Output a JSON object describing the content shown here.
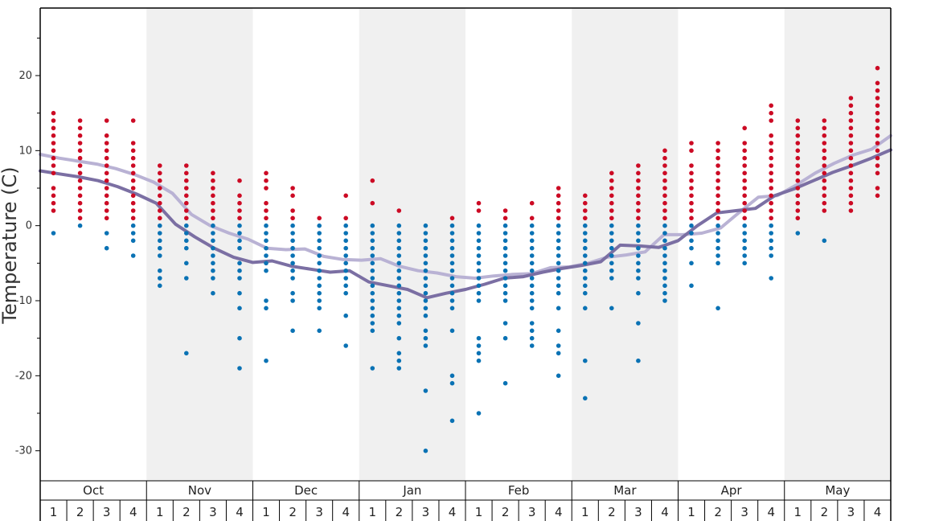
{
  "chart_data": {
    "type": "scatter",
    "title": "",
    "xlabel": "",
    "ylabel": "Temperature (C)",
    "ylim": [
      -34,
      29
    ],
    "yticks": [
      -30,
      -20,
      -10,
      0,
      10,
      20
    ],
    "grid": false,
    "months": [
      "Oct",
      "Nov",
      "Dec",
      "Jan",
      "Feb",
      "Mar",
      "Apr",
      "May"
    ],
    "weeks": [
      "1",
      "2",
      "3",
      "4"
    ],
    "shaded_months": [
      "Nov",
      "Jan",
      "Mar",
      "May"
    ],
    "colors": {
      "above_zero": "#cc0a24",
      "below_zero": "#0a72b4",
      "upper_line": "#b9b2d4",
      "lower_line": "#7b6fa3",
      "shade": "#f0f0f0"
    },
    "series": [
      {
        "values": [
          9.5,
          9.0,
          8.6,
          8.2,
          7.6,
          6.8,
          5.8,
          4.3,
          1.5,
          0.0,
          -1.0,
          -1.8,
          -3.0,
          -3.2,
          -3.1,
          -4.1,
          -4.5,
          -4.6,
          -4.4,
          -5.4,
          -6.0,
          -6.3,
          -6.8,
          -7.0,
          -6.7,
          -6.5,
          -6.4,
          -5.6,
          -5.5,
          -5.0,
          -4.2,
          -3.9,
          -3.5,
          -1.2,
          -1.2,
          -1.0,
          -0.3,
          1.8,
          3.8,
          4.0,
          5.4,
          7.0,
          8.3,
          9.4,
          10.2,
          12.0
        ]
      },
      {
        "values": [
          7.3,
          6.9,
          6.5,
          6.0,
          5.2,
          4.2,
          3.0,
          0.2,
          -1.5,
          -3.0,
          -4.2,
          -4.9,
          -4.7,
          -5.4,
          -5.8,
          -6.2,
          -6.0,
          -7.5,
          -8.0,
          -8.5,
          -9.6,
          -9.0,
          -8.5,
          -7.8,
          -7.0,
          -6.8,
          -6.2,
          -5.7,
          -5.3,
          -4.8,
          -2.6,
          -2.7,
          -2.9,
          -2.0,
          0.0,
          1.7,
          2.0,
          2.3,
          4.0,
          4.9,
          6.0,
          7.1,
          8.0,
          9.0,
          10.1
        ]
      }
    ],
    "scatter": [
      [
        15,
        14,
        13,
        12,
        11,
        10,
        9,
        8,
        7,
        5,
        4,
        3,
        2,
        -1
      ],
      [
        14,
        13,
        12,
        11,
        10,
        9,
        8,
        7,
        6,
        5,
        4,
        3,
        2,
        1,
        0
      ],
      [
        14,
        12,
        11,
        10,
        9,
        8,
        7,
        6,
        5,
        4,
        3,
        2,
        1,
        -1,
        -3
      ],
      [
        14,
        11,
        10,
        9,
        8,
        7,
        6,
        5,
        4,
        3,
        2,
        1,
        0,
        -1,
        -2,
        -4
      ],
      [
        8,
        7,
        6,
        5,
        4,
        3,
        2,
        1,
        0,
        -1,
        -2,
        -3,
        -4,
        -6,
        -7,
        -8
      ],
      [
        8,
        7,
        6,
        5,
        4,
        3,
        2,
        1,
        0,
        -1,
        -2,
        -3,
        -5,
        -7,
        -17
      ],
      [
        7,
        6,
        5,
        4,
        3,
        2,
        1,
        0,
        -1,
        -2,
        -3,
        -4,
        -5,
        -6,
        -7,
        -9
      ],
      [
        6,
        4,
        3,
        2,
        1,
        0,
        -1,
        -2,
        -3,
        -5,
        -6,
        -7,
        -9,
        -11,
        -15,
        -19
      ],
      [
        7,
        6,
        5,
        3,
        2,
        1,
        0,
        -1,
        -2,
        -3,
        -4,
        -5,
        -6,
        -10,
        -11,
        -18
      ],
      [
        5,
        4,
        2,
        1,
        0,
        -1,
        -2,
        -3,
        -4,
        -5,
        -6,
        -7,
        -9,
        -10,
        -14
      ],
      [
        1,
        0,
        -1,
        -2,
        -3,
        -4,
        -5,
        -6,
        -7,
        -8,
        -9,
        -10,
        -11,
        -14
      ],
      [
        4,
        1,
        0,
        -1,
        -2,
        -3,
        -4,
        -5,
        -6,
        -7,
        -8,
        -9,
        -12,
        -16
      ],
      [
        6,
        3,
        0,
        -1,
        -2,
        -3,
        -4,
        -5,
        -6,
        -7,
        -8,
        -9,
        -10,
        -11,
        -12,
        -13,
        -14,
        -19
      ],
      [
        2,
        0,
        -1,
        -2,
        -3,
        -4,
        -5,
        -6,
        -7,
        -8,
        -9,
        -10,
        -11,
        -12,
        -13,
        -15,
        -17,
        -18,
        -19
      ],
      [
        0,
        -1,
        -2,
        -3,
        -4,
        -5,
        -6,
        -7,
        -8,
        -9,
        -10,
        -11,
        -12,
        -14,
        -15,
        -16,
        -22,
        -30
      ],
      [
        1,
        0,
        -1,
        -2,
        -3,
        -4,
        -5,
        -6,
        -7,
        -8,
        -9,
        -10,
        -11,
        -14,
        -20,
        -21,
        -26
      ],
      [
        3,
        2,
        0,
        -1,
        -2,
        -3,
        -4,
        -5,
        -6,
        -7,
        -8,
        -9,
        -10,
        -15,
        -16,
        -17,
        -18,
        -25
      ],
      [
        2,
        1,
        0,
        -1,
        -2,
        -3,
        -4,
        -5,
        -6,
        -7,
        -8,
        -9,
        -10,
        -13,
        -15,
        -21
      ],
      [
        3,
        1,
        0,
        -1,
        -2,
        -3,
        -4,
        -5,
        -6,
        -7,
        -8,
        -9,
        -10,
        -11,
        -13,
        -14,
        -15,
        -16
      ],
      [
        5,
        4,
        3,
        2,
        1,
        0,
        -1,
        -2,
        -3,
        -4,
        -5,
        -6,
        -7,
        -8,
        -9,
        -11,
        -14,
        -16,
        -17,
        -20
      ],
      [
        4,
        3,
        2,
        1,
        0,
        -1,
        -2,
        -3,
        -4,
        -5,
        -6,
        -7,
        -8,
        -9,
        -11,
        -18,
        -23
      ],
      [
        7,
        6,
        5,
        4,
        3,
        2,
        1,
        0,
        -1,
        -2,
        -3,
        -4,
        -5,
        -6,
        -7,
        -11
      ],
      [
        8,
        7,
        6,
        5,
        4,
        3,
        2,
        1,
        0,
        -1,
        -2,
        -3,
        -4,
        -5,
        -6,
        -7,
        -9,
        -13,
        -18
      ],
      [
        10,
        9,
        8,
        7,
        6,
        5,
        4,
        3,
        2,
        1,
        0,
        -1,
        -2,
        -3,
        -4,
        -5,
        -6,
        -7,
        -8,
        -9,
        -10
      ],
      [
        11,
        10,
        8,
        7,
        6,
        5,
        4,
        3,
        2,
        1,
        0,
        -1,
        -2,
        -3,
        -5,
        -8
      ],
      [
        11,
        10,
        9,
        8,
        7,
        6,
        5,
        4,
        3,
        2,
        1,
        0,
        -1,
        -2,
        -3,
        -4,
        -5,
        -11
      ],
      [
        13,
        11,
        10,
        9,
        8,
        7,
        6,
        5,
        4,
        3,
        2,
        1,
        0,
        -1,
        -2,
        -3,
        -4,
        -5
      ],
      [
        16,
        15,
        14,
        12,
        11,
        10,
        9,
        8,
        7,
        6,
        5,
        4,
        3,
        2,
        1,
        0,
        -1,
        -2,
        -3,
        -4,
        -7
      ],
      [
        14,
        13,
        12,
        11,
        10,
        9,
        8,
        7,
        6,
        5,
        4,
        3,
        2,
        1,
        -1
      ],
      [
        14,
        13,
        12,
        11,
        10,
        9,
        8,
        7,
        6,
        5,
        4,
        3,
        2,
        -2
      ],
      [
        17,
        16,
        15,
        14,
        13,
        12,
        11,
        10,
        9,
        8,
        7,
        6,
        5,
        4,
        3,
        2
      ],
      [
        21,
        19,
        18,
        17,
        16,
        15,
        14,
        13,
        12,
        11,
        10,
        9,
        8,
        7,
        5,
        4
      ]
    ]
  }
}
